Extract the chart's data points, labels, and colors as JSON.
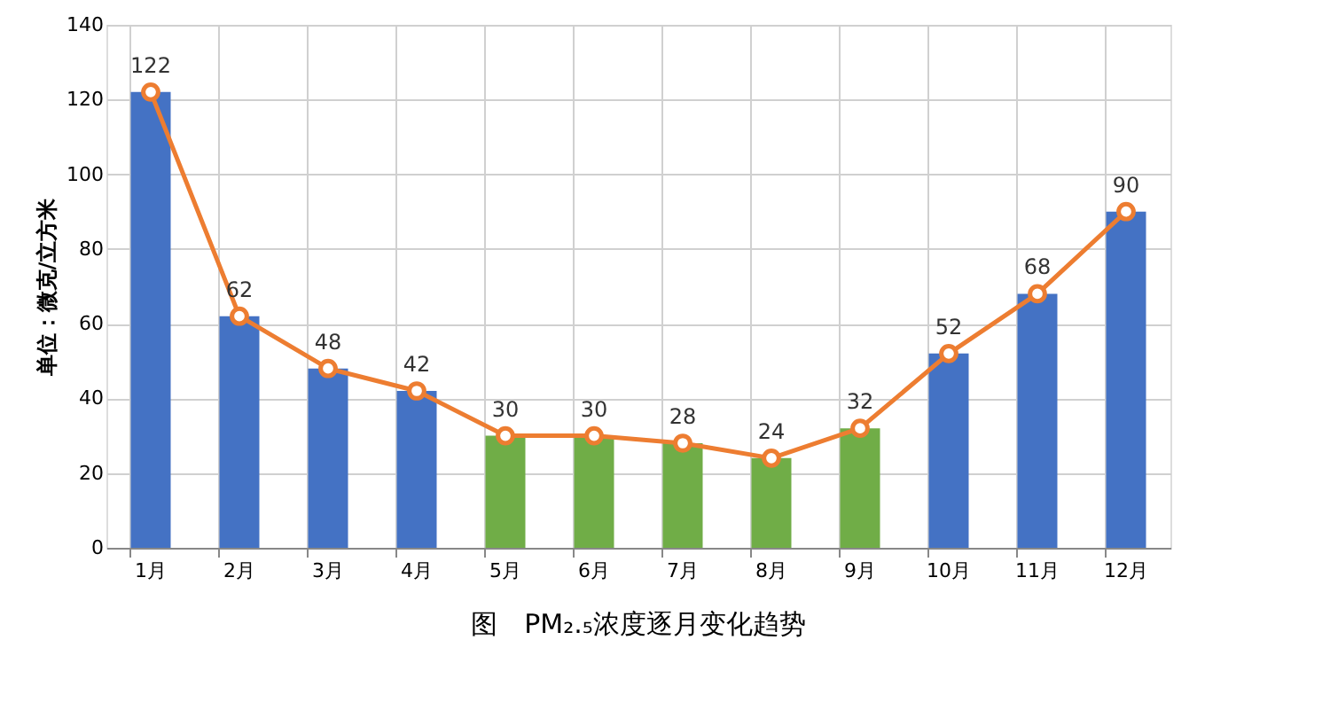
{
  "chart_data": {
    "type": "bar",
    "title": "图　PM₂.₅浓度逐月变化趋势",
    "ylabel": "单位：微克/立方米",
    "categories": [
      "1月",
      "2月",
      "3月",
      "4月",
      "5月",
      "6月",
      "7月",
      "8月",
      "9月",
      "10月",
      "11月",
      "12月"
    ],
    "series": [
      {
        "type": "bar",
        "colors": [
          "#4472c4",
          "#4472c4",
          "#4472c4",
          "#4472c4",
          "#70ad47",
          "#70ad47",
          "#70ad47",
          "#70ad47",
          "#70ad47",
          "#4472c4",
          "#4472c4",
          "#4472c4"
        ],
        "values": [
          122,
          62,
          48,
          42,
          30,
          30,
          28,
          24,
          32,
          52,
          68,
          90
        ]
      },
      {
        "type": "line",
        "color": "#ed7d31",
        "marker": "circle",
        "data_labels": true,
        "values": [
          122,
          62,
          48,
          42,
          30,
          30,
          28,
          24,
          32,
          52,
          68,
          90
        ]
      }
    ],
    "ylim": [
      0,
      140
    ],
    "yticks": [
      0,
      20,
      40,
      60,
      80,
      100,
      120,
      140
    ],
    "grid": true,
    "legend": false
  }
}
